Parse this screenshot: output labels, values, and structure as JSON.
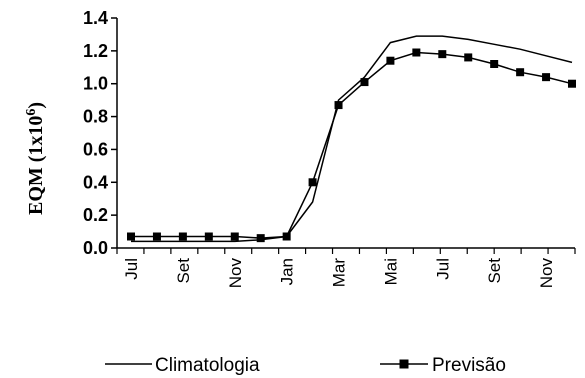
{
  "chart_data": {
    "type": "line",
    "xlabel": "",
    "ylabel": "EQM (1x10",
    "ylabel_exponent": "6",
    "ylabel_suffix": ")",
    "ylim": [
      0.0,
      1.4
    ],
    "yticks": [
      "0.0",
      "0.2",
      "0.4",
      "0.6",
      "0.8",
      "1.0",
      "1.2",
      "1.4"
    ],
    "xtick_labels": [
      "Jul",
      "Set",
      "Nov",
      "Jan",
      "Mar",
      "Mai",
      "Jul",
      "Set",
      "Nov"
    ],
    "legend_position": "bottom",
    "grid": false,
    "series": [
      {
        "name": "Climatologia",
        "marker": "none",
        "values": [
          0.04,
          0.04,
          0.04,
          0.04,
          0.04,
          0.05,
          0.07,
          0.28,
          0.9,
          1.04,
          1.25,
          1.29,
          1.29,
          1.27,
          1.24,
          1.21,
          1.17,
          1.13
        ]
      },
      {
        "name": "Previsão",
        "marker": "square",
        "values": [
          0.07,
          0.07,
          0.07,
          0.07,
          0.07,
          0.06,
          0.07,
          0.4,
          0.87,
          1.01,
          1.14,
          1.19,
          1.18,
          1.16,
          1.12,
          1.07,
          1.04,
          1.0
        ]
      }
    ]
  }
}
